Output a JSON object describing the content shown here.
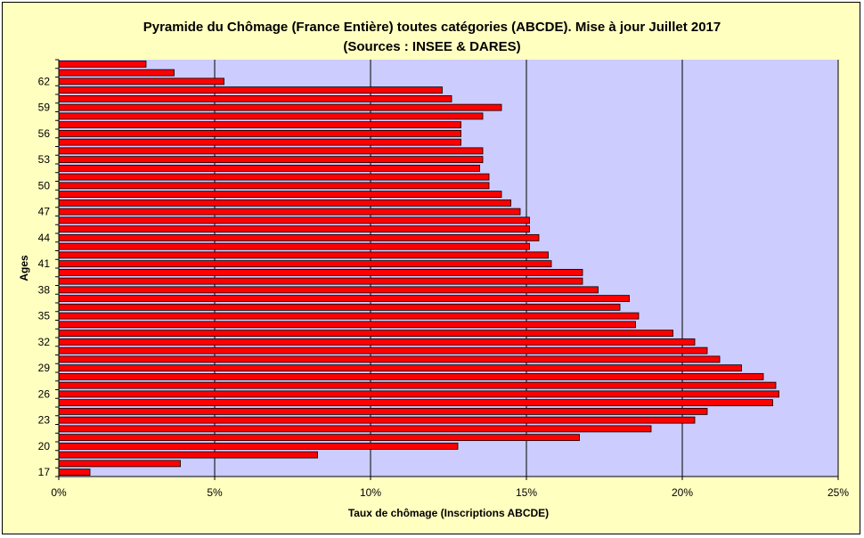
{
  "chart_data": {
    "type": "bar",
    "orientation": "horizontal",
    "title": "Pyramide du Chômage (France Entière) toutes catégories (ABCDE). Mise à jour Juillet 2017",
    "subtitle": "(Sources : INSEE & DARES)",
    "xlabel": "Taux de chômage (Inscriptions ABCDE)",
    "ylabel": "Ages",
    "xlim": [
      0,
      25
    ],
    "x_ticks": [
      0,
      5,
      10,
      15,
      20,
      25
    ],
    "x_tick_labels": [
      "0%",
      "5%",
      "10%",
      "15%",
      "20%",
      "25%"
    ],
    "y_tick_labels": [
      "17",
      "20",
      "23",
      "26",
      "29",
      "32",
      "35",
      "38",
      "41",
      "44",
      "47",
      "50",
      "53",
      "56",
      "59",
      "62"
    ],
    "grid": "vertical",
    "categories": [
      17,
      18,
      19,
      20,
      21,
      22,
      23,
      24,
      25,
      26,
      27,
      28,
      29,
      30,
      31,
      32,
      33,
      34,
      35,
      36,
      37,
      38,
      39,
      40,
      41,
      42,
      43,
      44,
      45,
      46,
      47,
      48,
      49,
      50,
      51,
      52,
      53,
      54,
      55,
      56,
      57,
      58,
      59,
      60,
      61,
      62,
      63,
      64
    ],
    "values": [
      1.0,
      3.9,
      8.3,
      12.8,
      16.7,
      19.0,
      20.4,
      20.8,
      22.9,
      23.1,
      23.0,
      22.6,
      21.9,
      21.2,
      20.8,
      20.4,
      19.7,
      18.5,
      18.6,
      18.0,
      18.3,
      17.3,
      16.8,
      16.8,
      15.8,
      15.7,
      15.1,
      15.4,
      15.1,
      15.1,
      14.8,
      14.5,
      14.2,
      13.8,
      13.8,
      13.5,
      13.6,
      13.6,
      12.9,
      12.9,
      12.9,
      13.6,
      14.2,
      12.6,
      12.3,
      5.3,
      3.7,
      2.8
    ],
    "colors": {
      "bar_fill": "#ff0000",
      "bar_stroke": "#000000",
      "plot_background": "#ccccff",
      "chart_background": "#ffffc0",
      "gridline": "#000000"
    }
  }
}
